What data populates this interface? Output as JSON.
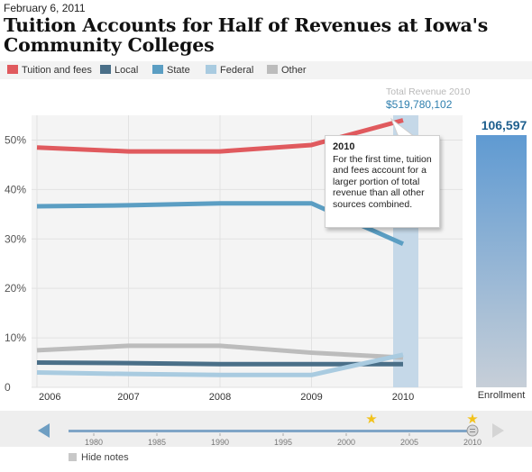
{
  "header": {
    "date": "February 6, 2011",
    "title": "Tuition Accounts for Half of Revenues at Iowa's Community Colleges"
  },
  "legend": [
    {
      "label": "Tuition and fees",
      "color": "#e05a5e"
    },
    {
      "label": "Local",
      "color": "#4a6f88"
    },
    {
      "label": "State",
      "color": "#5b9ec3"
    },
    {
      "label": "Federal",
      "color": "#a9cbe0"
    },
    {
      "label": "Other",
      "color": "#bcbcbc"
    }
  ],
  "chart_data": {
    "type": "line",
    "x": [
      2006,
      2007,
      2008,
      2009,
      2010
    ],
    "xlabels": [
      "2006",
      "2007",
      "2008",
      "2009",
      "2010"
    ],
    "ylim": [
      0,
      55
    ],
    "yticks": [
      0,
      10,
      20,
      30,
      40,
      50
    ],
    "ytick_labels": [
      "0",
      "10%",
      "20%",
      "30%",
      "40%",
      "50%"
    ],
    "grid": true,
    "series": [
      {
        "name": "Tuition and fees",
        "color": "#e05a5e",
        "values": [
          48.5,
          47.7,
          47.7,
          49.0,
          54.0
        ]
      },
      {
        "name": "State",
        "color": "#5b9ec3",
        "values": [
          36.6,
          36.8,
          37.2,
          37.2,
          29.0
        ]
      },
      {
        "name": "Other",
        "color": "#bcbcbc",
        "values": [
          7.5,
          8.4,
          8.4,
          7.0,
          6.0
        ]
      },
      {
        "name": "Local",
        "color": "#4a6f88",
        "values": [
          5.0,
          4.9,
          4.7,
          4.7,
          4.7
        ]
      },
      {
        "name": "Federal",
        "color": "#a9cbe0",
        "values": [
          3.0,
          2.7,
          2.5,
          2.5,
          6.6
        ]
      }
    ],
    "annotation": {
      "year": "2010",
      "text": "For the first time, tuition and fees account for a larger portion of total revenue than all other sources combined."
    },
    "total_revenue": {
      "label": "Total Revenue 2010",
      "value": "$519,780,102"
    },
    "enrollment": {
      "label": "Enrollment",
      "value": "106,597"
    }
  },
  "timeline": {
    "ticks": [
      "1980",
      "1985",
      "1990",
      "1995",
      "2000",
      "2005",
      "2010"
    ],
    "range": [
      1978,
      2010
    ],
    "stars": [
      2002,
      2010
    ],
    "handle": 2010,
    "hide_notes_label": "Hide notes"
  }
}
